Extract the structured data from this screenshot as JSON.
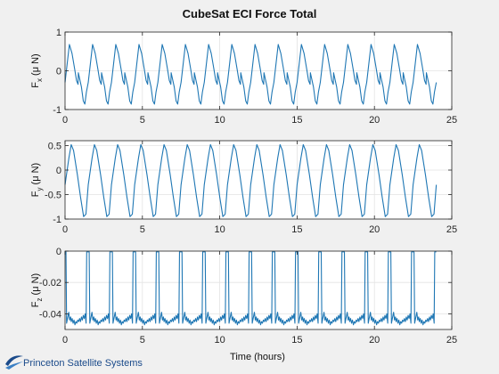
{
  "chart_data": {
    "type": "line",
    "title": "CubeSat ECI Force Total",
    "xlabel": "Time (hours)",
    "line_color": "#1f77b4",
    "grid": true,
    "subplots": [
      {
        "name": "fx",
        "ylabel_main": "F",
        "ylabel_sub": "x",
        "ylabel_unit": "(μ N)",
        "xlim": [
          0,
          25
        ],
        "ylim": [
          -1,
          1
        ],
        "xticks": [
          0,
          5,
          10,
          15,
          20,
          25
        ],
        "yticks": [
          -1,
          0,
          1
        ],
        "period_hours": 1.5,
        "series_x": [
          0,
          0.28,
          0.45,
          0.62,
          0.74,
          0.84,
          0.86,
          1.06,
          1.18,
          1.28,
          1.38,
          1.5
        ],
        "series_y": [
          -0.3,
          0.68,
          0.45,
          0.05,
          -0.25,
          -0.35,
          -0.05,
          -0.42,
          -0.78,
          -0.86,
          -0.55,
          -0.3
        ]
      },
      {
        "name": "fy",
        "ylabel_main": "F",
        "ylabel_sub": "y",
        "ylabel_unit": "(μ N)",
        "xlim": [
          0,
          25
        ],
        "ylim": [
          -1,
          0.6
        ],
        "xticks": [
          0,
          5,
          10,
          15,
          20,
          25
        ],
        "yticks": [
          -1,
          -0.5,
          0,
          0.5
        ],
        "period_hours": 1.5,
        "series_x": [
          0,
          0.25,
          0.4,
          0.55,
          0.8,
          1.0,
          1.2,
          1.35,
          1.5
        ],
        "series_y": [
          -0.3,
          0.25,
          0.52,
          0.4,
          -0.1,
          -0.55,
          -0.95,
          -0.9,
          -0.3
        ]
      },
      {
        "name": "fz",
        "ylabel_main": "F",
        "ylabel_sub": "z",
        "ylabel_unit": "(μ N)",
        "xlim": [
          0,
          25
        ],
        "ylim": [
          -0.05,
          0
        ],
        "xticks": [
          0,
          5,
          10,
          15,
          20,
          25
        ],
        "yticks": [
          -0.04,
          -0.02,
          0
        ],
        "period_hours": 1.5,
        "series_x": [
          0,
          0.06,
          0.1,
          0.24,
          0.3,
          0.36,
          0.4,
          0.46,
          0.52,
          0.58,
          0.64,
          0.7,
          0.76,
          0.82,
          0.88,
          0.94,
          1.0,
          1.06,
          1.12,
          1.18,
          1.24,
          1.3,
          1.36,
          1.4,
          1.5
        ],
        "series_y": [
          -0.0005,
          -0.0005,
          -0.046,
          -0.039,
          -0.044,
          -0.042,
          -0.045,
          -0.043,
          -0.046,
          -0.044,
          -0.047,
          -0.045,
          -0.046,
          -0.044,
          -0.045,
          -0.043,
          -0.045,
          -0.042,
          -0.044,
          -0.041,
          -0.043,
          -0.04,
          -0.046,
          -0.0005,
          -0.0005
        ]
      }
    ],
    "x_end": 24.0
  },
  "footer": {
    "logo_text": "Princeton Satellite Systems",
    "logo_color": "#1a4a8a"
  }
}
